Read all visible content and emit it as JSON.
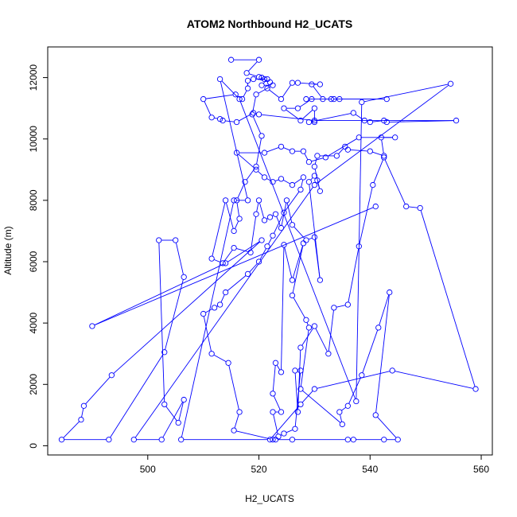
{
  "chart_data": {
    "type": "line",
    "title": "ATOM2 Northbound H2_UCATS",
    "xlabel": "H2_UCATS",
    "ylabel": "Altitude (m)",
    "xlim": [
      482,
      562
    ],
    "ylim": [
      -300,
      13000
    ],
    "x_ticks": [
      500,
      520,
      540,
      560
    ],
    "y_ticks": [
      0,
      2000,
      4000,
      6000,
      8000,
      10000,
      12000
    ],
    "x_tick_labels": [
      "500",
      "520",
      "540",
      "560"
    ],
    "y_tick_labels": [
      "0",
      "2000",
      "4000",
      "6000",
      "8000",
      "10000",
      "12000"
    ],
    "grid": false,
    "marker": "open-circle",
    "series": [
      {
        "name": "",
        "color": "#0000ff",
        "points": [
          [
            515,
            12580
          ],
          [
            520,
            12580
          ],
          [
            517.8,
            12150
          ],
          [
            520,
            12020
          ],
          [
            522,
            11850
          ],
          [
            521.5,
            11650
          ],
          [
            524,
            11300
          ],
          [
            526,
            11830
          ],
          [
            527,
            11830
          ],
          [
            531,
            11780
          ],
          [
            529.5,
            11780
          ],
          [
            531.5,
            11300
          ],
          [
            533,
            11300
          ],
          [
            534.5,
            11300
          ],
          [
            543,
            11300
          ],
          [
            533.5,
            11300
          ],
          [
            528.5,
            11300
          ],
          [
            529.5,
            11300
          ],
          [
            527,
            11000
          ],
          [
            524.5,
            11000
          ],
          [
            527.5,
            10600
          ],
          [
            530,
            11000
          ],
          [
            530,
            10550
          ],
          [
            529,
            10550
          ],
          [
            537,
            10850
          ],
          [
            539,
            10600
          ],
          [
            540,
            10550
          ],
          [
            542.5,
            10600
          ],
          [
            543,
            10550
          ],
          [
            555.5,
            10600
          ],
          [
            530,
            10600
          ],
          [
            520,
            10800
          ],
          [
            519,
            10850
          ],
          [
            516,
            10550
          ],
          [
            513.5,
            10600
          ],
          [
            513,
            10650
          ],
          [
            511.5,
            10700
          ],
          [
            510,
            11300
          ],
          [
            515.8,
            11450
          ],
          [
            517,
            11300
          ],
          [
            518,
            11650
          ],
          [
            518,
            11900
          ],
          [
            519,
            11950
          ],
          [
            521,
            11950
          ],
          [
            520.5,
            12000
          ],
          [
            521.5,
            11950
          ],
          [
            520.5,
            11750
          ],
          [
            522.5,
            11750
          ],
          [
            519.5,
            11450
          ],
          [
            518.8,
            10800
          ],
          [
            520.5,
            10100
          ],
          [
            519.5,
            9100
          ],
          [
            517.5,
            8600
          ],
          [
            516,
            8000
          ],
          [
            516.5,
            7400
          ],
          [
            515.5,
            7000
          ],
          [
            514,
            8000
          ],
          [
            511.5,
            6100
          ],
          [
            513.5,
            5950
          ],
          [
            515.5,
            6450
          ],
          [
            518.5,
            6300
          ],
          [
            519.5,
            7550
          ],
          [
            520,
            8000
          ],
          [
            521,
            7350
          ],
          [
            522,
            7450
          ],
          [
            523,
            7550
          ],
          [
            524,
            7100
          ],
          [
            525,
            8000
          ],
          [
            526,
            7200
          ],
          [
            528.5,
            6700
          ],
          [
            530,
            6800
          ],
          [
            531,
            5400
          ],
          [
            529,
            8600
          ],
          [
            530,
            8800
          ],
          [
            530.5,
            8650
          ],
          [
            531,
            8300
          ],
          [
            530,
            9100
          ],
          [
            530.5,
            9450
          ],
          [
            534,
            9450
          ],
          [
            535.5,
            9750
          ],
          [
            536,
            9650
          ],
          [
            540,
            9600
          ],
          [
            542.5,
            9450
          ],
          [
            542,
            10050
          ],
          [
            544.5,
            10050
          ],
          [
            538,
            10050
          ],
          [
            532,
            9400
          ],
          [
            529,
            9250
          ],
          [
            528,
            9600
          ],
          [
            526,
            9600
          ],
          [
            524,
            9750
          ],
          [
            521,
            9550
          ],
          [
            516,
            9550
          ],
          [
            519.5,
            9000
          ],
          [
            521,
            8750
          ],
          [
            522.5,
            8600
          ],
          [
            524,
            8700
          ],
          [
            526,
            8500
          ],
          [
            528,
            8750
          ],
          [
            527.5,
            8350
          ],
          [
            524.5,
            7600
          ],
          [
            522.5,
            6850
          ],
          [
            521.5,
            6500
          ],
          [
            520,
            6000
          ],
          [
            518,
            5600
          ],
          [
            514,
            5000
          ],
          [
            513,
            4600
          ],
          [
            512,
            4500
          ],
          [
            510,
            4300
          ],
          [
            511.5,
            3000
          ],
          [
            514.5,
            2700
          ],
          [
            516.5,
            1100
          ],
          [
            515.5,
            500
          ],
          [
            522.5,
            200
          ],
          [
            523,
            200
          ],
          [
            526,
            200
          ],
          [
            536,
            200
          ],
          [
            537,
            200
          ],
          [
            542.5,
            200
          ],
          [
            545,
            200
          ],
          [
            541,
            1000
          ],
          [
            543.5,
            5000
          ],
          [
            541.5,
            3850
          ],
          [
            538.5,
            2300
          ],
          [
            536,
            1300
          ],
          [
            534.5,
            1100
          ],
          [
            535,
            700
          ],
          [
            527.5,
            1850
          ],
          [
            529,
            3850
          ],
          [
            528.5,
            4100
          ],
          [
            526,
            4900
          ],
          [
            528,
            6600
          ],
          [
            526,
            5400
          ],
          [
            524.5,
            6550
          ],
          [
            524,
            2400
          ],
          [
            523,
            2700
          ],
          [
            522.5,
            1700
          ],
          [
            524,
            1100
          ],
          [
            522.5,
            1100
          ],
          [
            523.5,
            300
          ],
          [
            524.5,
            400
          ],
          [
            526.5,
            550
          ],
          [
            527.5,
            2450
          ],
          [
            526.5,
            2450
          ],
          [
            527,
            1100
          ],
          [
            527.5,
            3200
          ],
          [
            530,
            3900
          ],
          [
            532.5,
            3000
          ],
          [
            533.5,
            4500
          ],
          [
            536,
            4600
          ],
          [
            538,
            6500
          ],
          [
            540.5,
            8500
          ],
          [
            542.5,
            9400
          ],
          [
            546.5,
            7800
          ],
          [
            549,
            7750
          ],
          [
            559,
            1850
          ],
          [
            544,
            2450
          ],
          [
            530,
            1850
          ],
          [
            527.5,
            1350
          ],
          [
            522,
            200
          ],
          [
            506,
            200
          ],
          [
            515.5,
            8000
          ],
          [
            518,
            8000
          ],
          [
            513,
            11950
          ],
          [
            516.5,
            11300
          ],
          [
            537.5,
            1450
          ],
          [
            538.5,
            11200
          ],
          [
            554.5,
            11800
          ],
          [
            530,
            8500
          ],
          [
            497.5,
            200
          ],
          [
            502.5,
            200
          ],
          [
            506.5,
            1500
          ],
          [
            505.5,
            750
          ],
          [
            503,
            1350
          ],
          [
            502,
            6700
          ],
          [
            505,
            6700
          ],
          [
            506.5,
            5500
          ],
          [
            503,
            3050
          ],
          [
            493,
            200
          ],
          [
            484.5,
            200
          ],
          [
            488,
            850
          ],
          [
            488.5,
            1300
          ],
          [
            493.5,
            2300
          ],
          [
            520.5,
            6700
          ],
          [
            514,
            5950
          ],
          [
            490,
            3900
          ],
          [
            541,
            7800
          ]
        ]
      }
    ]
  }
}
